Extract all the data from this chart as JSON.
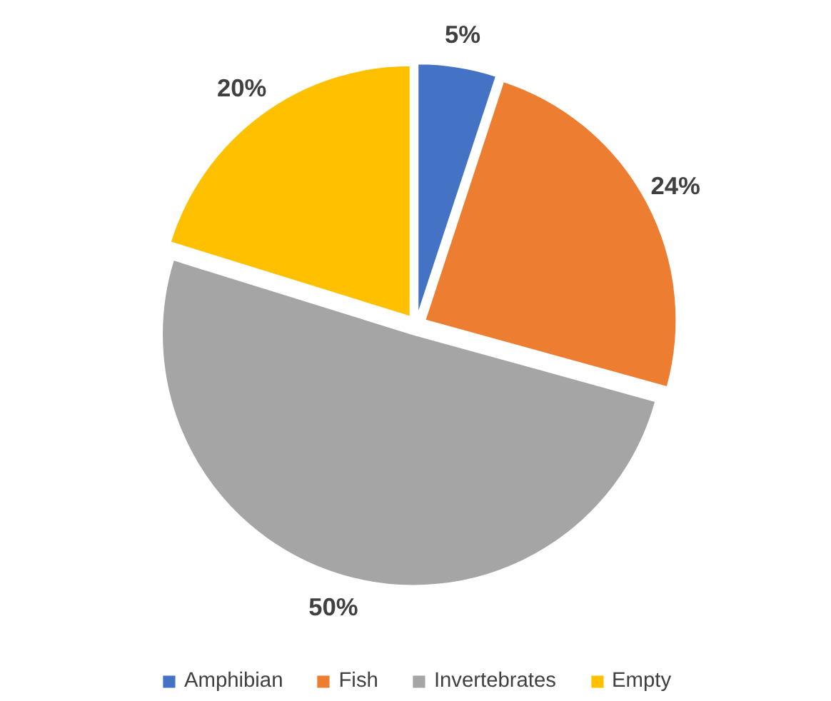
{
  "chart_data": {
    "type": "pie",
    "categories": [
      "Amphibian",
      "Fish",
      "Invertebrates",
      "Empty"
    ],
    "values": [
      5,
      24,
      50,
      20
    ],
    "colors": [
      "#4472c4",
      "#ed7d31",
      "#a5a5a5",
      "#ffc000"
    ],
    "value_labels": [
      "5%",
      "24%",
      "50%",
      "20%"
    ],
    "legend": "bottom"
  }
}
